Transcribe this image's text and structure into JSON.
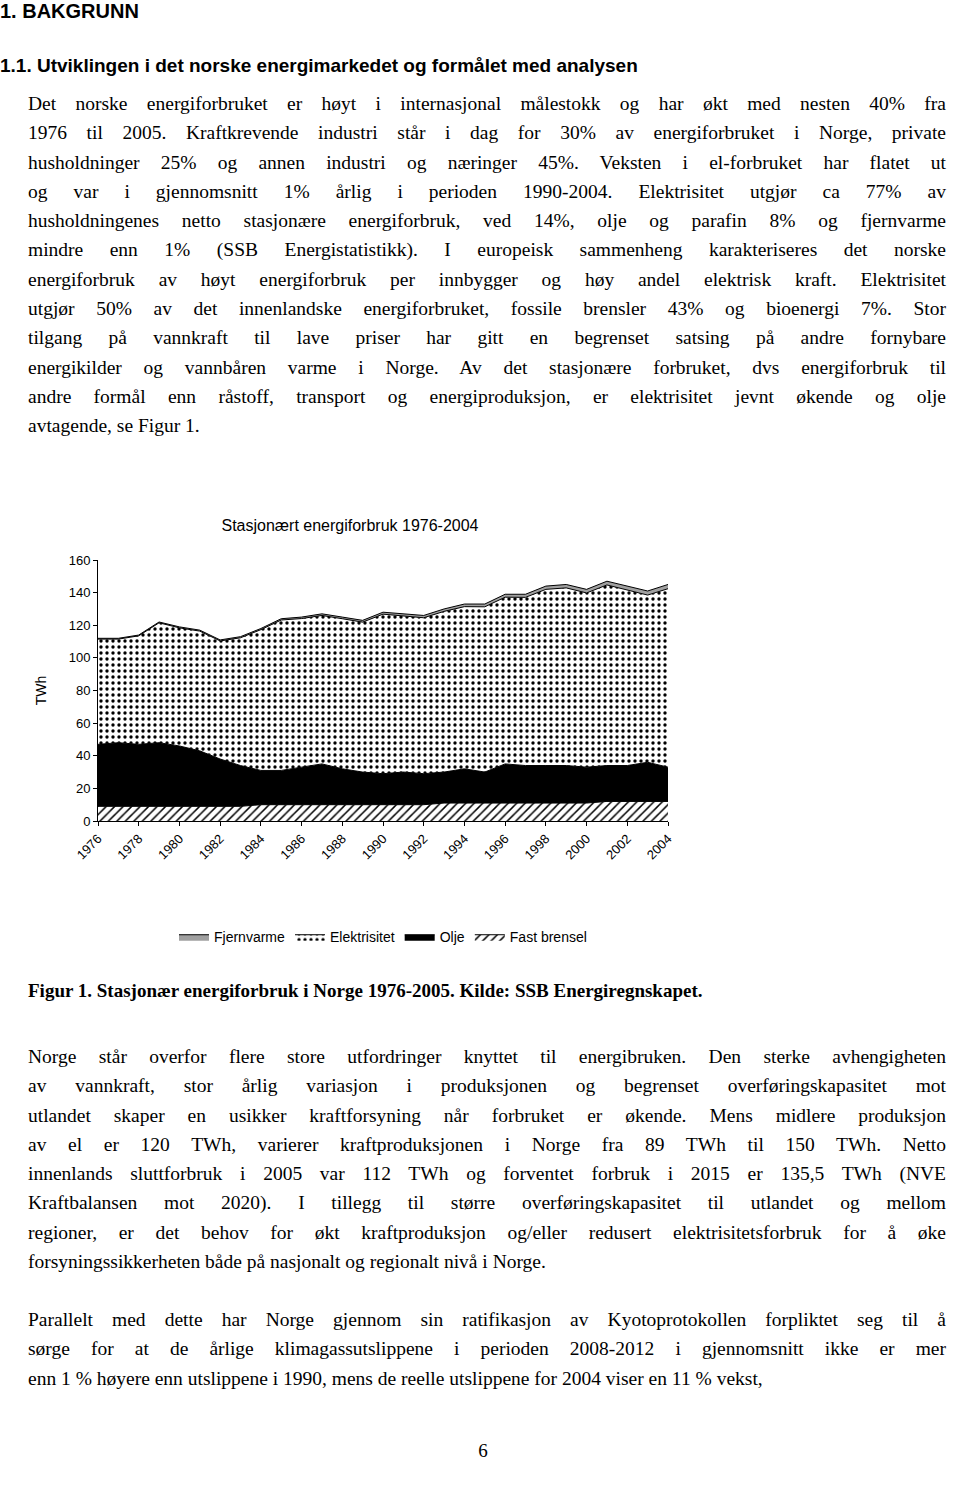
{
  "heading": "1. BAKGRUNN",
  "subheading": "1.1. Utviklingen i det norske energimarkedet og formålet med analysen",
  "paragraphs_before": [
    [
      "Det norske energiforbruket er høyt i internasjonal målestokk og har økt med nesten 40% fra",
      "1976 til 2005. Kraftkrevende industri står i dag for 30% av energiforbruket i Norge, private",
      "husholdninger 25%  og annen industri og næringer 45%. Veksten i el-forbruket har flatet ut",
      "og var i gjennomsnitt 1% årlig i perioden 1990-2004. Elektrisitet utgjør ca 77% av",
      "husholdningenes netto stasjonære energiforbruk, ved 14%, olje og parafin 8% og fjernvarme",
      "mindre enn 1% (SSB Energistatistikk). I europeisk sammenheng karakteriseres det norske",
      "energiforbruk av høyt energiforbruk per innbygger og høy andel elektrisk kraft. Elektrisitet",
      "utgjør 50% av det innenlandske energiforbruket, fossile brensler 43% og bioenergi 7%. Stor",
      "tilgang på vannkraft til lave priser har gitt en begrenset satsing på andre fornybare",
      "energikilder og vannbåren varme i Norge.  Av det stasjonære forbruket, dvs energiforbruk til",
      "andre formål enn råstoff, transport og energiproduksjon, er elektrisitet jevnt økende og olje",
      "avtagende, se Figur 1."
    ]
  ],
  "chart_data": {
    "type": "area",
    "title": "Stasjonært energiforbruk 1976-2004",
    "y_label": "TWh",
    "stacked": true,
    "categories": [
      "1976",
      null,
      "1978",
      null,
      "1980",
      null,
      "1982",
      null,
      "1984",
      null,
      "1986",
      null,
      "1988",
      null,
      "1990",
      null,
      "1992",
      null,
      "1994",
      null,
      "1996",
      null,
      "1998",
      null,
      "2000",
      null,
      "2002",
      null,
      "2004"
    ],
    "series": [
      {
        "name": "Fast brensel",
        "color": "#000000",
        "values": [
          9,
          9,
          9,
          9,
          9,
          9,
          9,
          9,
          10,
          10,
          10,
          10,
          10,
          10,
          10,
          10,
          10,
          11,
          11,
          11,
          11,
          11,
          11,
          11,
          11,
          12,
          12,
          12,
          12
        ]
      },
      {
        "name": "Olje",
        "color": "#000000",
        "values": [
          38,
          39,
          38,
          39,
          37,
          34,
          29,
          25,
          21,
          21,
          23,
          25,
          22,
          20,
          19,
          20,
          19,
          19,
          21,
          19,
          24,
          23,
          23,
          23,
          22,
          22,
          22,
          24,
          21
        ]
      },
      {
        "name": "Elektrisitet",
        "color": "#000000",
        "values": [
          64.5,
          63.5,
          66.5,
          73.5,
          72.4,
          73.4,
          72.4,
          78.3,
          86.3,
          92.2,
          91.1,
          91,
          92,
          91.9,
          97.8,
          95.7,
          95.6,
          98.5,
          99.4,
          101.3,
          102.2,
          103.1,
          108,
          108.9,
          106.8,
          110.7,
          107.6,
          102.5,
          109.4
        ]
      },
      {
        "name": "Fjernvarme",
        "color": "#a0a0a0",
        "values": [
          0.5,
          0.5,
          0.5,
          0.5,
          0.6,
          0.6,
          0.6,
          0.7,
          0.7,
          0.8,
          0.9,
          1.0,
          1.0,
          1.1,
          1.2,
          1.3,
          1.4,
          1.5,
          1.6,
          1.7,
          1.8,
          1.9,
          2.0,
          2.1,
          2.2,
          2.3,
          2.4,
          2.5,
          2.6
        ]
      }
    ],
    "ylim": [
      0,
      160
    ],
    "yticks": [
      0,
      20,
      40,
      60,
      80,
      100,
      120,
      140,
      160
    ],
    "grid": false,
    "legend": "bottom"
  },
  "caption": "Figur 1. Stasjonær energiforbruk i Norge 1976-2005. Kilde: SSB Energiregnskapet.",
  "paragraphs_after": [
    [
      "Norge står overfor flere store utfordringer knyttet til energibruken. Den sterke avhengigheten",
      "av vannkraft, stor årlig variasjon i produksjonen og begrenset overføringskapasitet mot",
      "utlandet skaper en usikker kraftforsyning når forbruket er økende. Mens midlere produksjon",
      "av el er 120 TWh, varierer kraftproduksjonen i Norge fra 89 TWh til 150 TWh. Netto",
      "innenlands sluttforbruk i 2005 var 112 TWh og forventet forbruk i 2015 er 135,5 TWh (NVE",
      "Kraftbalansen mot 2020). I tillegg til større overføringskapasitet til utlandet og mellom",
      "regioner, er det behov for økt kraftproduksjon og/eller redusert elektrisitetsforbruk for å øke",
      "forsyningssikkerheten både på nasjonalt og regionalt nivå i Norge."
    ],
    [
      "Parallelt med dette har Norge gjennom sin ratifikasjon av Kyotoprotokollen forpliktet seg til å",
      "sørge for at de årlige klimagassutslippene i perioden 2008-2012 i gjennomsnitt ikke er mer",
      "enn 1 % høyere enn utslippene i 1990, mens de reelle utslippene for 2004 viser en 11 %  vekst,"
    ]
  ],
  "page_number": "6"
}
